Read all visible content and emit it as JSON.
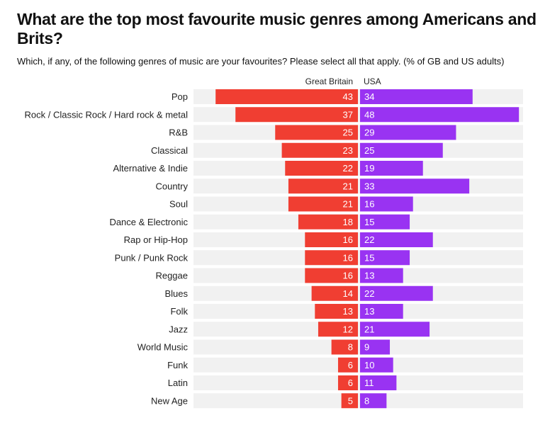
{
  "header": {
    "title": "What are the top most favourite music genres among Americans and Brits?",
    "subtitle": "Which, if any, of the following genres of music are your favourites? Please select all that apply. (% of GB and US adults)"
  },
  "colors": {
    "gb": "#f03e32",
    "usa": "#9933f2",
    "row_band": "#f1f1f1"
  },
  "chart_data": {
    "type": "bar",
    "orientation": "horizontal-diverging",
    "title": "What are the top most favourite music genres among Americans and Brits?",
    "subtitle": "Which, if any, of the following genres of music are your favourites? Please select all that apply. (% of GB and US adults)",
    "categories": [
      "Pop",
      "Rock / Classic Rock / Hard rock & metal",
      "R&B",
      "Classical",
      "Alternative & Indie",
      "Country",
      "Soul",
      "Dance & Electronic",
      "Rap or Hip-Hop",
      "Punk / Punk Rock",
      "Reggae",
      "Blues",
      "Folk",
      "Jazz",
      "World Music",
      "Funk",
      "Latin",
      "New Age"
    ],
    "series": [
      {
        "name": "Great Britain",
        "values": [
          43,
          37,
          25,
          23,
          22,
          21,
          21,
          18,
          16,
          16,
          16,
          14,
          13,
          12,
          8,
          6,
          6,
          5
        ]
      },
      {
        "name": "USA",
        "values": [
          34,
          48,
          29,
          25,
          19,
          33,
          16,
          15,
          22,
          15,
          13,
          22,
          13,
          21,
          9,
          10,
          11,
          8
        ]
      }
    ],
    "xlim": [
      0,
      48
    ],
    "legend": "top-center",
    "grid": false
  }
}
